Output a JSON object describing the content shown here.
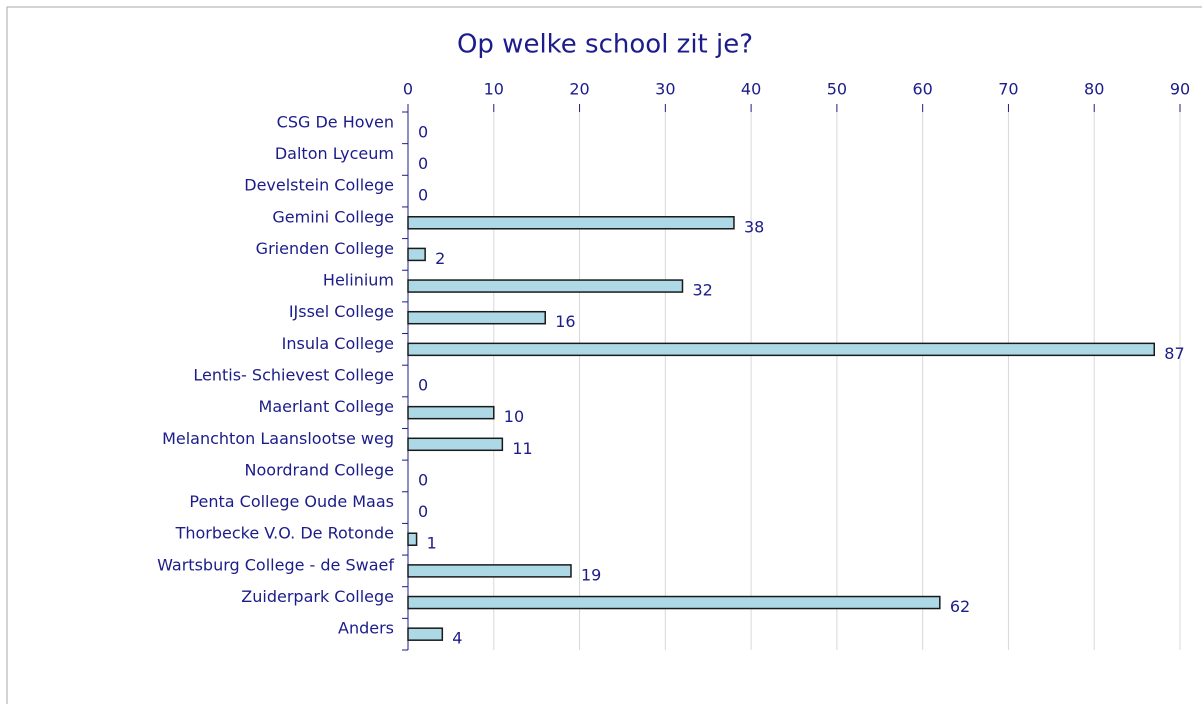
{
  "chart_data": {
    "type": "bar",
    "title": "Op welke school zit je?",
    "categories": [
      "CSG De Hoven",
      "Dalton Lyceum",
      "Develstein College",
      "Gemini College",
      "Grienden College",
      "Helinium",
      "IJssel College",
      "Insula College",
      "Lentis- Schievest College",
      "Maerlant College",
      "Melanchton Laanslootse weg",
      "Noordrand College",
      "Penta College Oude Maas",
      "Thorbecke V.O. De Rotonde",
      "Wartsburg College - de Swaef",
      "Zuiderpark College",
      "Anders"
    ],
    "values": [
      0,
      0,
      0,
      38,
      2,
      32,
      16,
      87,
      0,
      10,
      11,
      0,
      0,
      1,
      19,
      62,
      4
    ],
    "color": "#add8e6",
    "xlim": [
      0,
      90
    ],
    "xticks": [
      0,
      10,
      20,
      30,
      40,
      50,
      60,
      70,
      80,
      90
    ],
    "grid": true
  }
}
